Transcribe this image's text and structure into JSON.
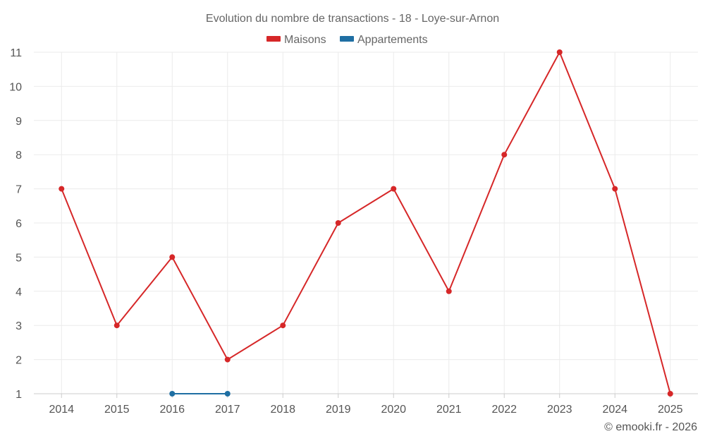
{
  "chart_data": {
    "type": "line",
    "title": "Evolution du nombre de transactions - 18 - Loye-sur-Arnon",
    "categories": [
      "2014",
      "2015",
      "2016",
      "2017",
      "2018",
      "2019",
      "2020",
      "2021",
      "2022",
      "2023",
      "2024",
      "2025"
    ],
    "series": [
      {
        "name": "Maisons",
        "color": "#d62728",
        "values": [
          7,
          3,
          5,
          2,
          3,
          6,
          7,
          4,
          8,
          11,
          7,
          1
        ]
      },
      {
        "name": "Appartements",
        "color": "#1f6fa3",
        "values": [
          null,
          null,
          1,
          1,
          null,
          null,
          null,
          null,
          null,
          null,
          null,
          null
        ]
      }
    ],
    "y_ticks": [
      1,
      2,
      3,
      4,
      5,
      6,
      7,
      8,
      9,
      10,
      11
    ],
    "ylim": [
      1,
      11
    ],
    "grid": true,
    "legend_position": "top-center"
  },
  "credit": "© emooki.fr - 2026"
}
